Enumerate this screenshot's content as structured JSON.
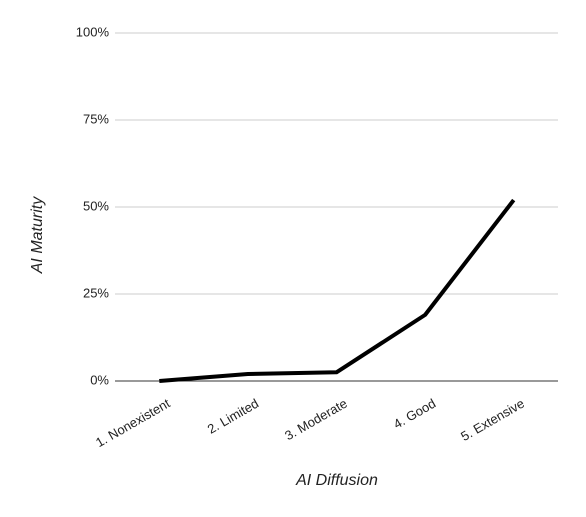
{
  "chart_data": {
    "type": "line",
    "x_label": "AI Diffusion",
    "y_label": "AI Maturity",
    "categories": [
      "1. Nonexistent",
      "2. Limited",
      "3. Moderate",
      "4. Good",
      "5. Extensive"
    ],
    "values": [
      0,
      2,
      2.5,
      19,
      52
    ],
    "color": "#000000",
    "ylim": [
      0,
      100
    ],
    "yticks": [
      {
        "value": 0,
        "label": "0%"
      },
      {
        "value": 25,
        "label": "25%"
      },
      {
        "value": 50,
        "label": "50%"
      },
      {
        "value": 75,
        "label": "75%"
      },
      {
        "value": 100,
        "label": "100%"
      }
    ],
    "grid": true
  }
}
